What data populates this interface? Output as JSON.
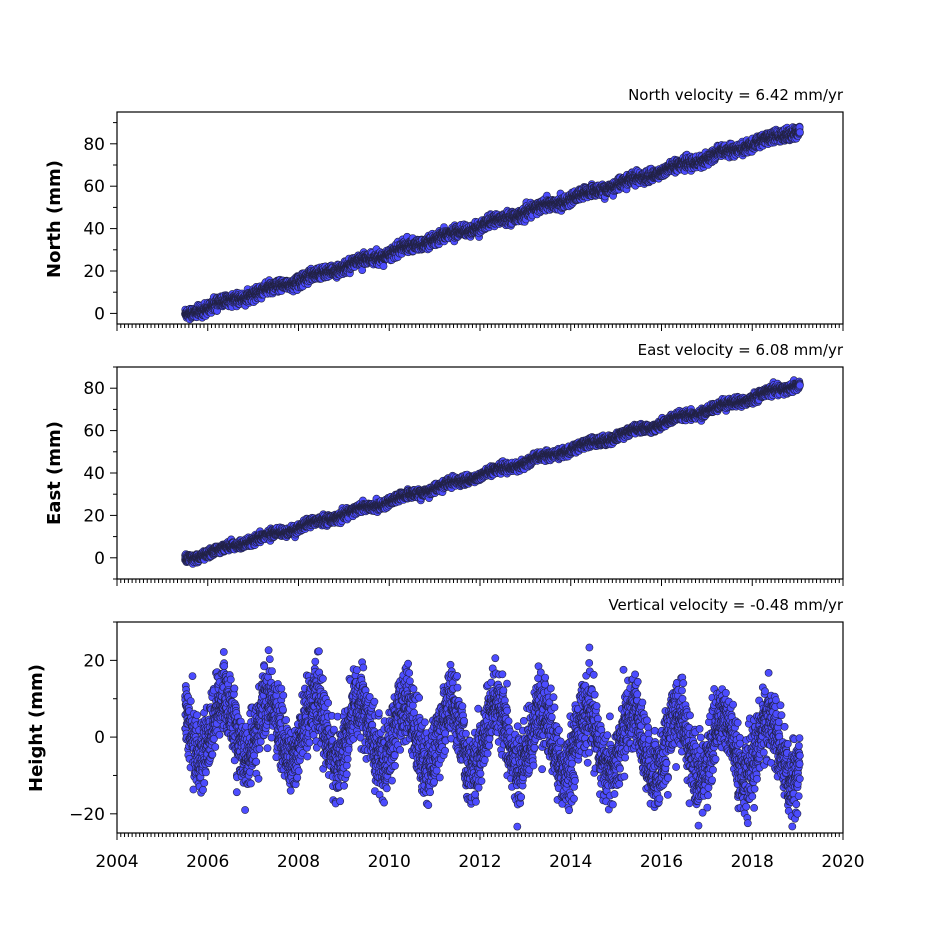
{
  "chart_data": [
    {
      "type": "scatter",
      "ylabel": "North (mm)",
      "annotation": "North velocity = 6.42 mm/yr",
      "xlim": [
        2004,
        2020
      ],
      "ylim": [
        -5,
        95
      ],
      "yticks": [
        0,
        20,
        40,
        60,
        80
      ],
      "xticks": [
        2004,
        2006,
        2008,
        2010,
        2012,
        2014,
        2016,
        2018,
        2020
      ],
      "show_xticklabels": false,
      "x_range": [
        2005.5,
        2019.05
      ],
      "y_at_start": -0.5,
      "y_at_end": 86.5,
      "velocity_mm_per_yr": 6.42,
      "seasonal_amplitude_mm": 0.8,
      "noise_mm": 1.3,
      "marker_color": "#4c4cff"
    },
    {
      "type": "scatter",
      "ylabel": "East (mm)",
      "annotation": "East velocity = 6.08 mm/yr",
      "xlim": [
        2004,
        2020
      ],
      "ylim": [
        -10,
        90
      ],
      "yticks": [
        0,
        20,
        40,
        60,
        80
      ],
      "xticks": [
        2004,
        2006,
        2008,
        2010,
        2012,
        2014,
        2016,
        2018,
        2020
      ],
      "show_xticklabels": false,
      "x_range": [
        2005.5,
        2019.05
      ],
      "y_at_start": -1.0,
      "y_at_end": 82.0,
      "velocity_mm_per_yr": 6.08,
      "seasonal_amplitude_mm": 0.8,
      "noise_mm": 1.0,
      "marker_color": "#4c4cff"
    },
    {
      "type": "scatter",
      "ylabel": "Height (mm)",
      "annotation": "Vertical velocity = -0.48 mm/yr",
      "xlim": [
        2004,
        2020
      ],
      "ylim": [
        -25,
        30
      ],
      "yticks": [
        -20,
        0,
        20
      ],
      "xticks": [
        2004,
        2006,
        2008,
        2010,
        2012,
        2014,
        2016,
        2018,
        2020
      ],
      "show_xticklabels": true,
      "x_range": [
        2005.5,
        2019.05
      ],
      "y_at_start": 3.0,
      "y_at_end": -3.5,
      "velocity_mm_per_yr": -0.48,
      "seasonal_amplitude_mm": 8,
      "noise_mm": 4.5,
      "marker_color": "#4c4cff"
    }
  ]
}
